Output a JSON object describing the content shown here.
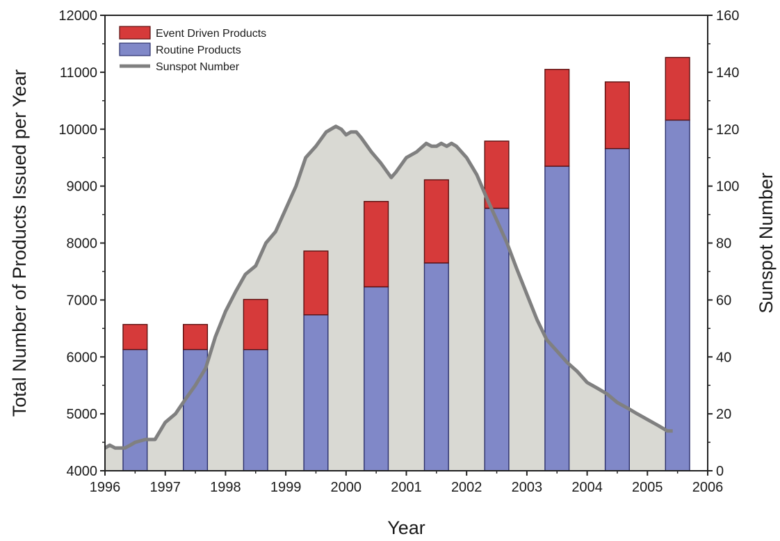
{
  "chart_data": {
    "type": "bar",
    "stacked": true,
    "xlabel": "Year",
    "ylabel": "Total Number of Products Issued per Year",
    "y2label": "Sunspot Number",
    "xlim": [
      1996,
      2006
    ],
    "ylim": [
      4000,
      12000
    ],
    "y2lim": [
      0,
      160
    ],
    "x_ticks": [
      "1996",
      "1997",
      "1998",
      "1999",
      "2000",
      "2001",
      "2002",
      "2003",
      "2004",
      "2005",
      "2006"
    ],
    "y_ticks": [
      "4000",
      "5000",
      "6000",
      "7000",
      "8000",
      "9000",
      "10000",
      "11000",
      "12000"
    ],
    "y2_ticks": [
      "0",
      "20",
      "40",
      "60",
      "80",
      "100",
      "120",
      "140",
      "160"
    ],
    "bar_x": [
      1996.5,
      1997.5,
      1998.5,
      1999.5,
      2000.5,
      2001.5,
      2002.5,
      2003.5,
      2004.5,
      2005.5
    ],
    "series": [
      {
        "name": "Routine Products",
        "color": "#8088c8",
        "values": [
          6130,
          6130,
          6130,
          6740,
          7230,
          7650,
          8610,
          9350,
          9660,
          10160
        ]
      },
      {
        "name": "Event Driven Products",
        "color": "#d63a3a",
        "values": [
          440,
          440,
          880,
          1120,
          1500,
          1460,
          1180,
          1700,
          1170,
          1100
        ]
      }
    ],
    "sunspot": {
      "name": "Sunspot Number",
      "color": "#808080",
      "fill": "#d9d9d3",
      "x": [
        1996.0,
        1996.08,
        1996.17,
        1996.25,
        1996.33,
        1996.42,
        1996.5,
        1996.67,
        1996.83,
        1997.0,
        1997.17,
        1997.33,
        1997.5,
        1997.67,
        1997.83,
        1998.0,
        1998.17,
        1998.33,
        1998.5,
        1998.67,
        1998.83,
        1999.0,
        1999.17,
        1999.33,
        1999.5,
        1999.67,
        1999.83,
        1999.92,
        2000.0,
        2000.08,
        2000.17,
        2000.25,
        2000.42,
        2000.58,
        2000.75,
        2000.83,
        2001.0,
        2001.17,
        2001.33,
        2001.42,
        2001.5,
        2001.58,
        2001.67,
        2001.75,
        2001.83,
        2002.0,
        2002.17,
        2002.33,
        2002.5,
        2002.67,
        2002.83,
        2003.0,
        2003.17,
        2003.33,
        2003.5,
        2003.67,
        2003.83,
        2004.0,
        2004.17,
        2004.33,
        2004.5,
        2004.67,
        2004.83,
        2005.0,
        2005.17,
        2005.33,
        2005.42
      ],
      "values": [
        8,
        9,
        8,
        8,
        8,
        9,
        10,
        11,
        11,
        17,
        20,
        25,
        30,
        36,
        47,
        56,
        63,
        69,
        72,
        80,
        84,
        92,
        100,
        110,
        114,
        119,
        121,
        120,
        118,
        119,
        119,
        117,
        112,
        108,
        103,
        105,
        110,
        112,
        115,
        114,
        114,
        115,
        114,
        115,
        114,
        110,
        104,
        96,
        88,
        80,
        71,
        62,
        53,
        46,
        42,
        38,
        35,
        31,
        29,
        27,
        24,
        22,
        20,
        18,
        16,
        14,
        14
      ]
    },
    "legend": {
      "placement": "top-left",
      "entries": [
        "Event Driven Products",
        "Routine Products",
        "Sunspot Number"
      ]
    },
    "grid": false
  }
}
